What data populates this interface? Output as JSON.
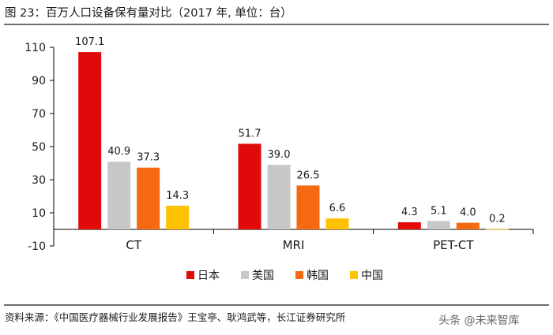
{
  "title": "图 23：百万人口设备保有量对比（2017 年, 单位：台）",
  "source": "资料来源：《中国医疗器械行业发展报告》王宝亭、耿鸿武等，长江证券研究所",
  "watermark": "头条 @未来智库",
  "colors": {
    "japan": "#e10a0a",
    "usa": "#c8c8c8",
    "korea": "#f56a10",
    "china": "#ffc200",
    "axis": "#000000",
    "text": "#1a1a1a"
  },
  "chart_data": {
    "type": "bar",
    "title": "",
    "xlabel": "",
    "ylabel": "",
    "categories": [
      "CT",
      "MRI",
      "PET-CT"
    ],
    "series": [
      {
        "name": "日本",
        "values": [
          107.1,
          51.7,
          4.3
        ]
      },
      {
        "name": "美国",
        "values": [
          40.9,
          39.0,
          5.1
        ]
      },
      {
        "name": "韩国",
        "values": [
          37.3,
          26.5,
          4.0
        ]
      },
      {
        "name": "中国",
        "values": [
          14.3,
          6.6,
          0.2
        ]
      }
    ],
    "data_labels": [
      [
        "107.1",
        "51.7",
        "4.3"
      ],
      [
        "40.9",
        "39.0",
        "5.1"
      ],
      [
        "37.3",
        "26.5",
        "4.0"
      ],
      [
        "14.3",
        "6.6",
        "0.2"
      ]
    ],
    "ylim": [
      -10,
      110
    ],
    "yticks": [
      -10,
      10,
      30,
      50,
      70,
      90,
      110
    ],
    "ytick_labels": [
      "-10",
      "10",
      "30",
      "50",
      "70",
      "90",
      "110"
    ],
    "grid": false,
    "legend_position": "bottom"
  }
}
